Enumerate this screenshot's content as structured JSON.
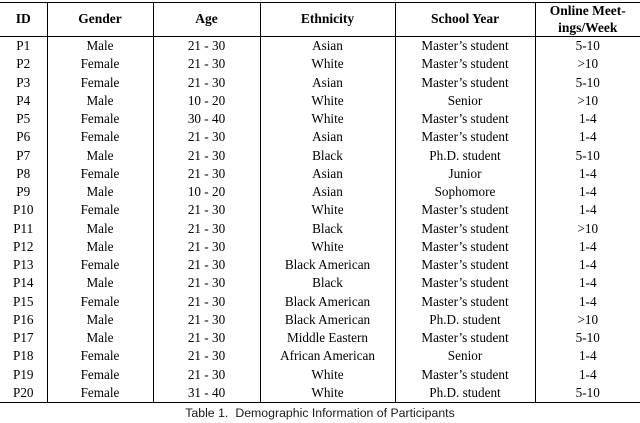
{
  "table": {
    "columns": [
      {
        "key": "id",
        "label": "ID"
      },
      {
        "key": "gender",
        "label": "Gender"
      },
      {
        "key": "age",
        "label": "Age"
      },
      {
        "key": "ethnicity",
        "label": "Ethnicity"
      },
      {
        "key": "school-year",
        "label": "School Year"
      },
      {
        "key": "online-meetings-per-week",
        "label": "Online Meet-\nings/Week"
      }
    ],
    "rows": [
      [
        "P1",
        "Male",
        "21 - 30",
        "Asian",
        "Master’s student",
        "5-10"
      ],
      [
        "P2",
        "Female",
        "21 - 30",
        "White",
        "Master’s student",
        ">10"
      ],
      [
        "P3",
        "Female",
        "21 - 30",
        "Asian",
        "Master’s student",
        "5-10"
      ],
      [
        "P4",
        "Male",
        "10 - 20",
        "White",
        "Senior",
        ">10"
      ],
      [
        "P5",
        "Female",
        "30 - 40",
        "White",
        "Master’s student",
        "1-4"
      ],
      [
        "P6",
        "Female",
        "21 - 30",
        "Asian",
        "Master’s student",
        "1-4"
      ],
      [
        "P7",
        "Male",
        "21 - 30",
        "Black",
        "Ph.D. student",
        "5-10"
      ],
      [
        "P8",
        "Female",
        "21 - 30",
        "Asian",
        "Junior",
        "1-4"
      ],
      [
        "P9",
        "Male",
        "10 - 20",
        "Asian",
        "Sophomore",
        "1-4"
      ],
      [
        "P10",
        "Female",
        "21 - 30",
        "White",
        "Master’s student",
        "1-4"
      ],
      [
        "P11",
        "Male",
        "21 - 30",
        "Black",
        "Master’s student",
        ">10"
      ],
      [
        "P12",
        "Male",
        "21 - 30",
        "White",
        "Master’s student",
        "1-4"
      ],
      [
        "P13",
        "Female",
        "21 - 30",
        "Black American",
        "Master’s student",
        "1-4"
      ],
      [
        "P14",
        "Male",
        "21 - 30",
        "Black",
        "Master’s student",
        "1-4"
      ],
      [
        "P15",
        "Female",
        "21 - 30",
        "Black American",
        "Master’s student",
        "1-4"
      ],
      [
        "P16",
        "Male",
        "21 - 30",
        "Black American",
        "Ph.D. student",
        ">10"
      ],
      [
        "P17",
        "Male",
        "21 - 30",
        "Middle Eastern",
        "Master’s student",
        "5-10"
      ],
      [
        "P18",
        "Female",
        "21 - 30",
        "African American",
        "Senior",
        "1-4"
      ],
      [
        "P19",
        "Female",
        "21 - 30",
        "White",
        "Master’s student",
        "1-4"
      ],
      [
        "P20",
        "Female",
        "31 - 40",
        "White",
        "Ph.D. student",
        "5-10"
      ]
    ]
  },
  "caption": {
    "label": "Table 1.",
    "text": "Demographic Information of Participants"
  }
}
